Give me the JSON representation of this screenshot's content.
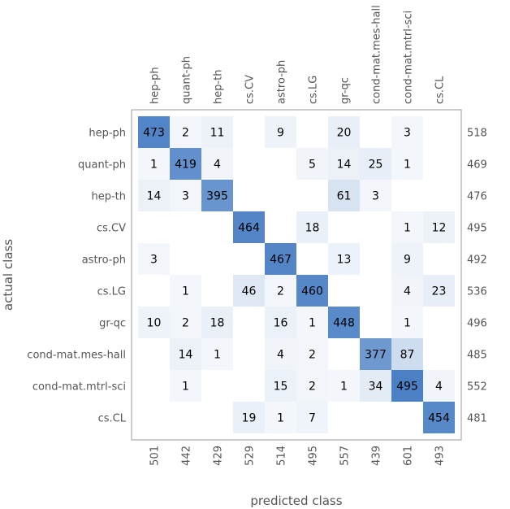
{
  "chart_data": {
    "type": "heatmap",
    "title": "",
    "xlabel": "predicted class",
    "ylabel": "actual class",
    "row_labels": [
      "hep-ph",
      "quant-ph",
      "hep-th",
      "cs.CV",
      "astro-ph",
      "cs.LG",
      "gr-qc",
      "cond-mat.mes-hall",
      "cond-mat.mtrl-sci",
      "cs.CL"
    ],
    "col_labels": [
      "hep-ph",
      "quant-ph",
      "hep-th",
      "cs.CV",
      "astro-ph",
      "cs.LG",
      "gr-qc",
      "cond-mat.mes-hall",
      "cond-mat.mtrl-sci",
      "cs.CL"
    ],
    "matrix": [
      [
        473,
        2,
        11,
        null,
        9,
        null,
        20,
        null,
        3,
        null
      ],
      [
        1,
        419,
        4,
        null,
        null,
        5,
        14,
        25,
        1,
        null
      ],
      [
        14,
        3,
        395,
        null,
        null,
        null,
        61,
        3,
        null,
        null
      ],
      [
        null,
        null,
        null,
        464,
        null,
        18,
        null,
        null,
        1,
        12
      ],
      [
        3,
        null,
        null,
        null,
        467,
        null,
        13,
        null,
        9,
        null
      ],
      [
        null,
        1,
        null,
        46,
        2,
        460,
        null,
        null,
        4,
        23
      ],
      [
        10,
        2,
        18,
        null,
        16,
        1,
        448,
        null,
        1,
        null
      ],
      [
        null,
        14,
        1,
        null,
        4,
        2,
        null,
        377,
        87,
        null
      ],
      [
        null,
        1,
        null,
        null,
        15,
        2,
        1,
        34,
        495,
        4
      ],
      [
        null,
        null,
        null,
        19,
        1,
        7,
        null,
        null,
        null,
        454
      ]
    ],
    "row_totals": [
      518,
      469,
      476,
      495,
      492,
      536,
      496,
      485,
      552,
      481
    ],
    "col_totals": [
      501,
      442,
      429,
      529,
      514,
      495,
      557,
      439,
      601,
      493
    ],
    "colors": {
      "high": "#4a7fc4",
      "low": "#f4f7fb",
      "text": "#000000",
      "label": "#555555",
      "frame": "#999999"
    }
  }
}
